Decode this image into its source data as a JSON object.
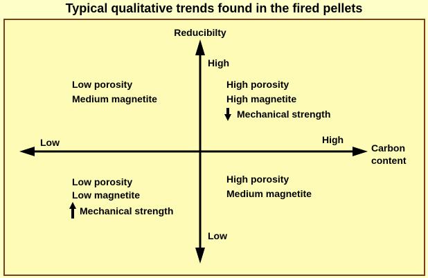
{
  "title": "Typical qualitative trends found in the fired pellets",
  "y_axis": {
    "label": "Reducibilty",
    "high": "High",
    "low": "Low"
  },
  "x_axis": {
    "label_line1": "Carbon",
    "label_line2": "content",
    "high": "High",
    "low": "Low"
  },
  "quadrants": {
    "top_left": [
      "Low porosity",
      "Medium magnetite"
    ],
    "top_right": [
      "High porosity",
      "High magnetite",
      "Mechanical strength"
    ],
    "bottom_left": [
      "Low porosity",
      "Low magnetite",
      "Mechanical strength"
    ],
    "bottom_right": [
      "High porosity",
      "Medium magnetite"
    ]
  },
  "icons": {
    "top_right_strength": "arrow-down-icon",
    "bottom_left_strength": "arrow-up-icon"
  },
  "colors": {
    "background": "#fdfbb6",
    "border": "#7a3f1a",
    "ink": "#000000"
  }
}
